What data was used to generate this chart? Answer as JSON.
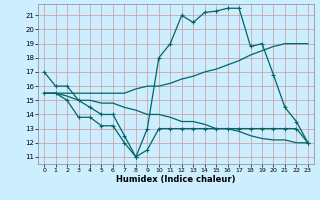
{
  "xlabel": "Humidex (Indice chaleur)",
  "bg_color": "#cceeff",
  "grid_color": "#cc9999",
  "line_color": "#006666",
  "xlim": [
    -0.5,
    23.5
  ],
  "ylim": [
    10.5,
    21.8
  ],
  "yticks": [
    11,
    12,
    13,
    14,
    15,
    16,
    17,
    18,
    19,
    20,
    21
  ],
  "xticks": [
    0,
    1,
    2,
    3,
    4,
    5,
    6,
    7,
    8,
    9,
    10,
    11,
    12,
    13,
    14,
    15,
    16,
    17,
    18,
    19,
    20,
    21,
    22,
    23
  ],
  "line1_x": [
    0,
    1,
    2,
    3,
    4,
    5,
    6,
    7,
    8,
    9,
    10,
    11,
    12,
    13,
    14,
    15,
    16,
    17,
    18,
    19,
    20,
    21,
    22,
    23
  ],
  "line1_y": [
    17.0,
    16.0,
    16.0,
    15.0,
    14.5,
    14.0,
    14.0,
    12.5,
    11.0,
    13.0,
    18.0,
    19.0,
    21.0,
    20.5,
    21.2,
    21.3,
    21.5,
    21.5,
    18.8,
    19.0,
    16.8,
    14.5,
    13.5,
    12.0
  ],
  "line2_x": [
    0,
    1,
    2,
    3,
    4,
    5,
    6,
    7,
    8,
    9,
    10,
    11,
    12,
    13,
    14,
    15,
    16,
    17,
    18,
    19,
    20,
    21,
    22,
    23
  ],
  "line2_y": [
    15.5,
    15.5,
    15.0,
    13.8,
    13.8,
    13.2,
    13.2,
    12.0,
    11.0,
    11.5,
    13.0,
    13.0,
    13.0,
    13.0,
    13.0,
    13.0,
    13.0,
    13.0,
    13.0,
    13.0,
    13.0,
    13.0,
    13.0,
    12.0
  ],
  "line3_x": [
    0,
    1,
    2,
    3,
    4,
    5,
    6,
    7,
    8,
    9,
    10,
    11,
    12,
    13,
    14,
    15,
    16,
    17,
    18,
    19,
    20,
    21,
    22,
    23
  ],
  "line3_y": [
    15.5,
    15.5,
    15.5,
    15.5,
    15.5,
    15.5,
    15.5,
    15.5,
    15.8,
    16.0,
    16.0,
    16.2,
    16.5,
    16.7,
    17.0,
    17.2,
    17.5,
    17.8,
    18.2,
    18.5,
    18.8,
    19.0,
    19.0,
    19.0
  ],
  "line4_x": [
    0,
    1,
    2,
    3,
    4,
    5,
    6,
    7,
    8,
    9,
    10,
    11,
    12,
    13,
    14,
    15,
    16,
    17,
    18,
    19,
    20,
    21,
    22,
    23
  ],
  "line4_y": [
    15.5,
    15.5,
    15.3,
    15.0,
    15.0,
    14.8,
    14.8,
    14.5,
    14.3,
    14.0,
    14.0,
    13.8,
    13.5,
    13.5,
    13.3,
    13.0,
    13.0,
    12.8,
    12.5,
    12.3,
    12.2,
    12.2,
    12.0,
    12.0
  ]
}
